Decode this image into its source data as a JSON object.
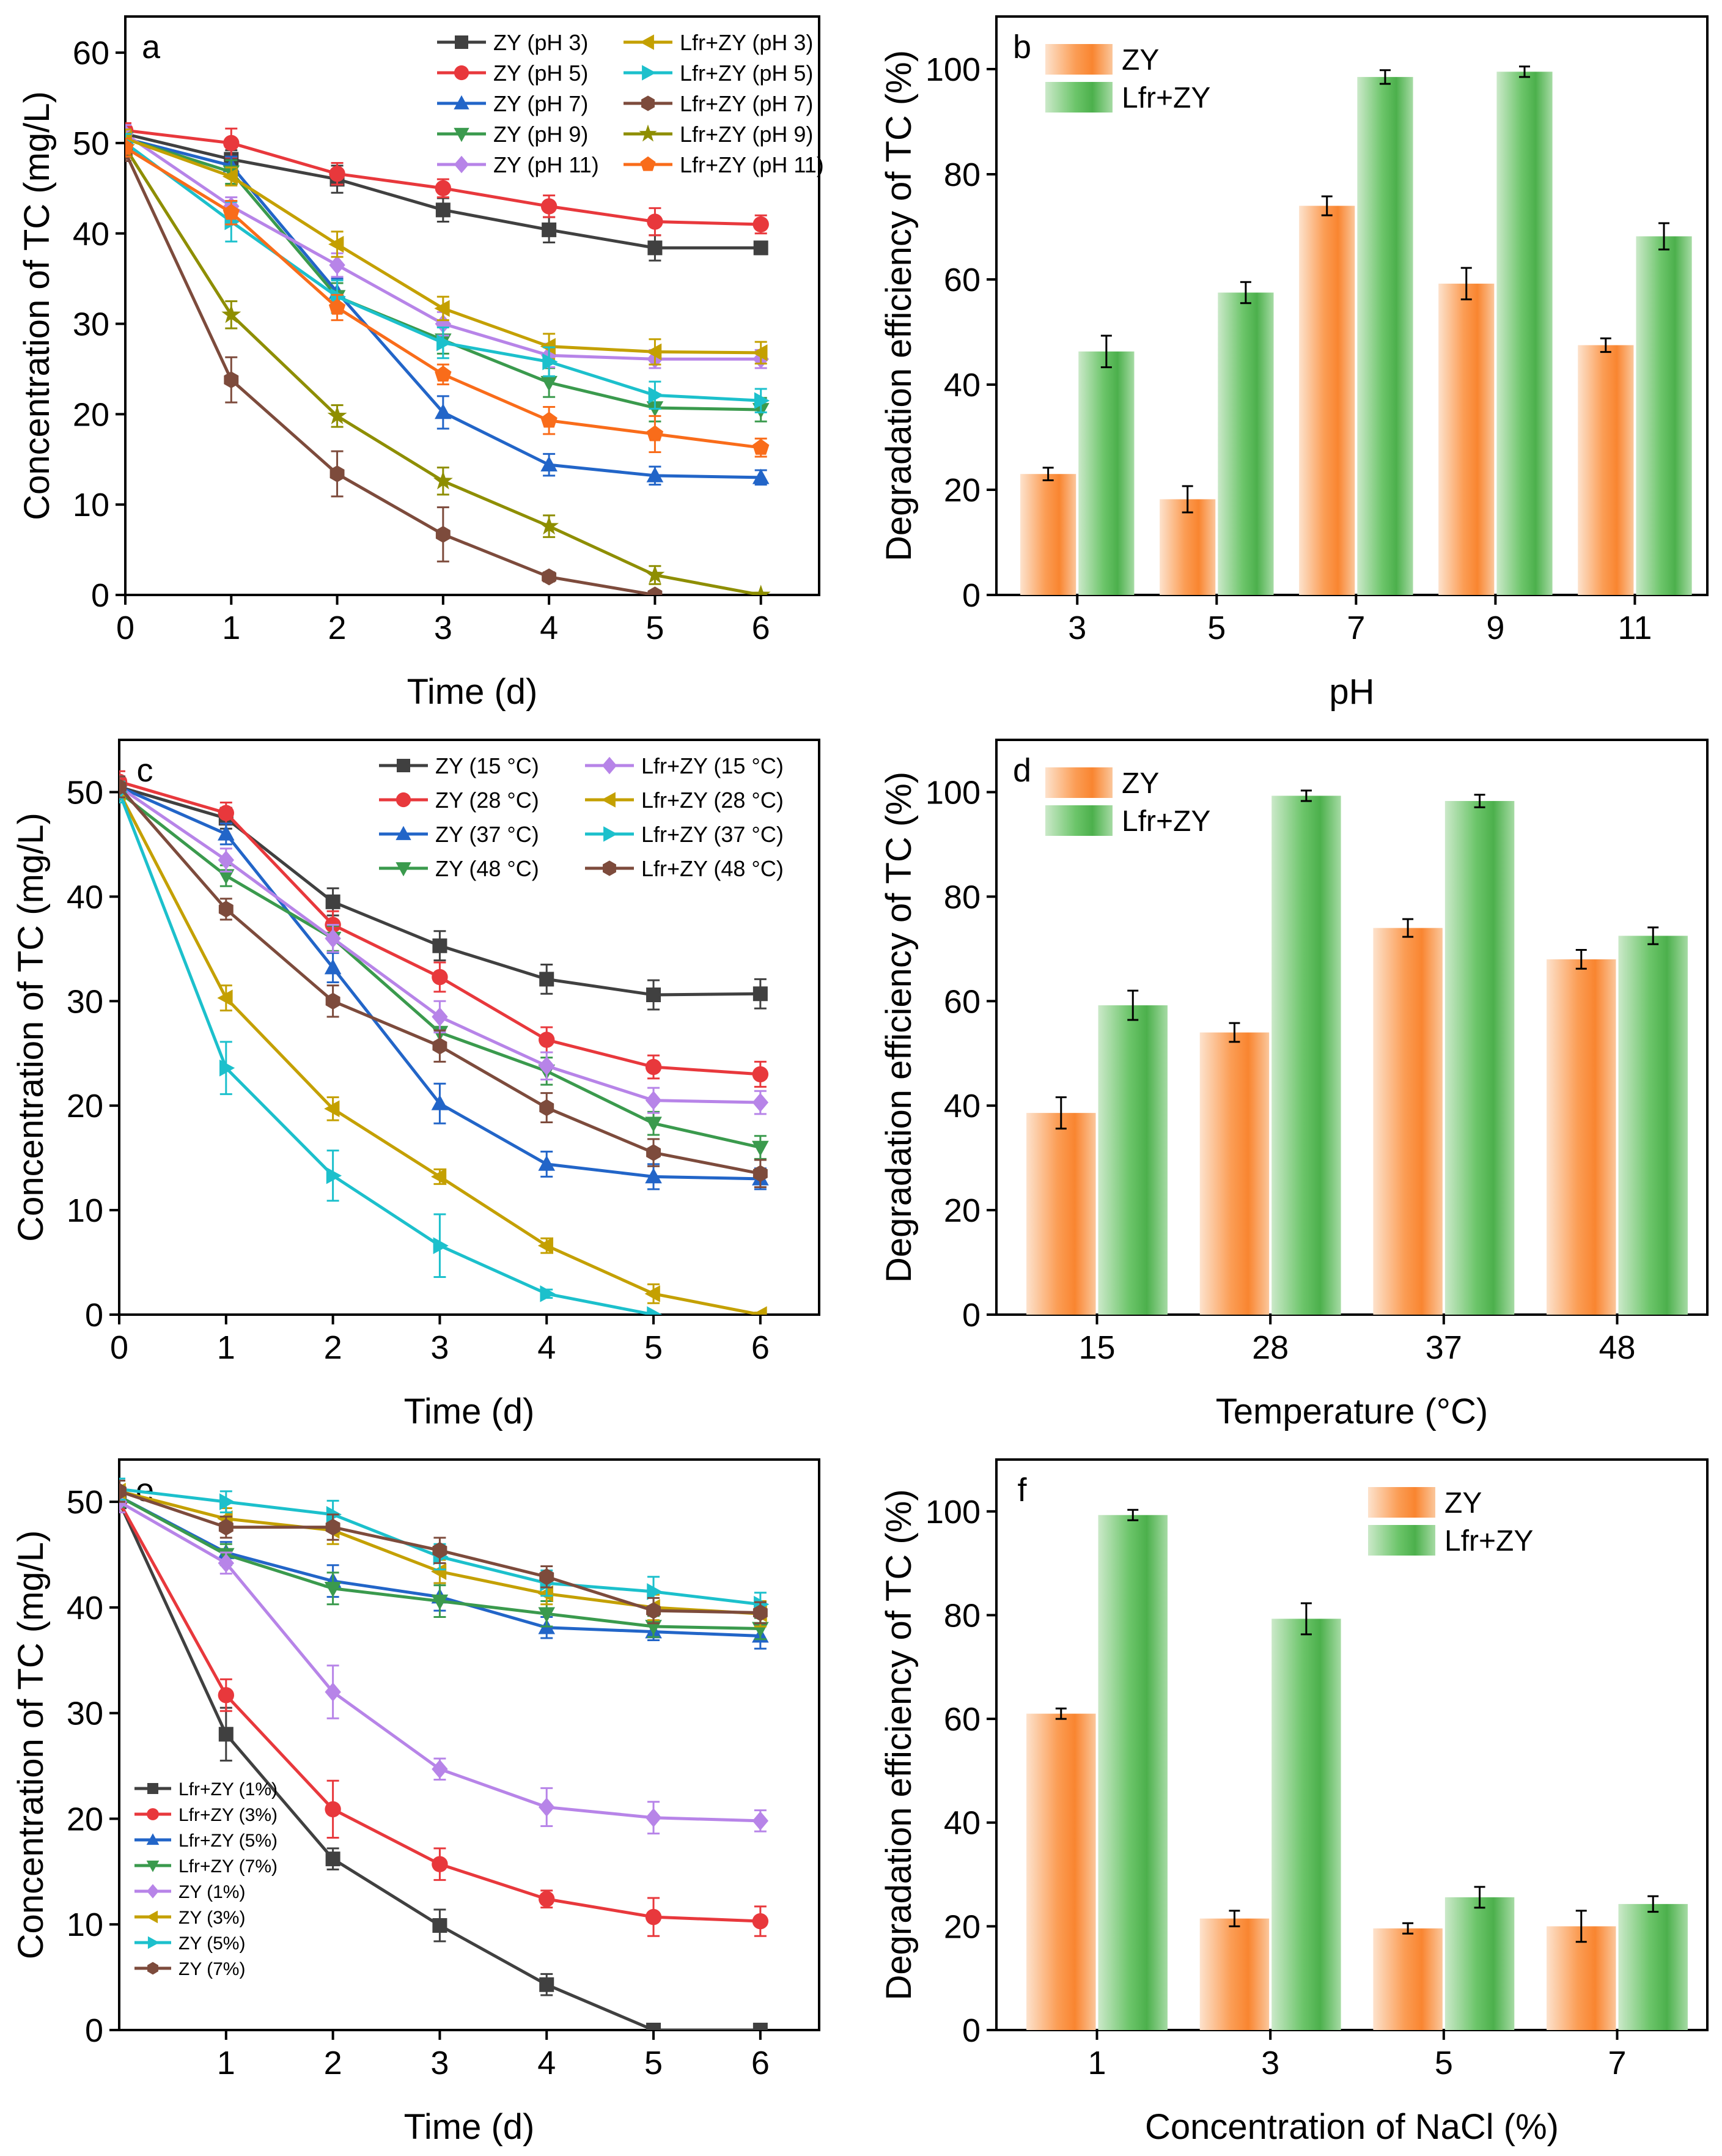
{
  "chart_data": [
    {
      "panel": "a",
      "type": "line",
      "x": [
        0,
        1,
        2,
        3,
        4,
        5,
        6
      ],
      "xlabel": "Time (d)",
      "ylabel": "Concentration of TC (mg/L)",
      "xlim": [
        0,
        6.55
      ],
      "ylim": [
        0,
        64
      ],
      "xticks": [
        0,
        1,
        2,
        3,
        4,
        5,
        6
      ],
      "yticks": [
        0,
        10,
        20,
        30,
        40,
        50,
        60
      ],
      "legend": "top-right",
      "legend_columns": 2,
      "series": [
        {
          "name": "ZY (pH 3)",
          "color": "#404040",
          "marker": "square",
          "values": [
            51.0,
            48.2,
            46.0,
            42.6,
            40.4,
            38.4,
            38.4
          ],
          "err": [
            1.0,
            1.0,
            1.5,
            1.3,
            1.4,
            1.4,
            0.7
          ]
        },
        {
          "name": "ZY (pH 5)",
          "color": "#e8383c",
          "marker": "circle",
          "values": [
            51.4,
            50.0,
            46.6,
            45.0,
            43.0,
            41.3,
            41.0
          ],
          "err": [
            0.8,
            1.6,
            1.2,
            1.0,
            1.2,
            1.5,
            1.0
          ]
        },
        {
          "name": "ZY (pH 7)",
          "color": "#2265c8",
          "marker": "triangle-up",
          "values": [
            50.5,
            47.5,
            33.5,
            20.2,
            14.4,
            13.2,
            13.0
          ],
          "err": [
            1.0,
            1.0,
            1.5,
            1.8,
            1.2,
            1.0,
            0.8
          ]
        },
        {
          "name": "ZY (pH 9)",
          "color": "#3a9a4d",
          "marker": "triangle-down",
          "values": [
            50.5,
            46.8,
            33.0,
            28.2,
            23.5,
            20.7,
            20.5
          ],
          "err": [
            1.0,
            1.3,
            1.5,
            1.5,
            1.6,
            1.5,
            1.3
          ]
        },
        {
          "name": "ZY (pH 11)",
          "color": "#b784e8",
          "marker": "diamond",
          "values": [
            51.0,
            43.0,
            36.5,
            30.0,
            26.5,
            26.1,
            26.1
          ],
          "err": [
            1.0,
            1.0,
            1.3,
            1.3,
            1.3,
            1.0,
            1.0
          ]
        },
        {
          "name": "Lfr+ZY (pH 3)",
          "color": "#c4a000",
          "marker": "triangle-left",
          "values": [
            50.5,
            46.3,
            38.8,
            31.7,
            27.5,
            26.9,
            26.8
          ],
          "err": [
            1.0,
            1.0,
            1.4,
            1.3,
            1.4,
            1.4,
            1.2
          ]
        },
        {
          "name": "Lfr+ZY (pH 5)",
          "color": "#1cc0cc",
          "marker": "triangle-right",
          "values": [
            50.0,
            41.3,
            33.0,
            27.9,
            25.8,
            22.1,
            21.5
          ],
          "err": [
            1.0,
            2.2,
            1.8,
            1.7,
            1.6,
            1.5,
            1.3
          ]
        },
        {
          "name": "Lfr+ZY (pH 7)",
          "color": "#7d4b3c",
          "marker": "hexagon",
          "values": [
            49.0,
            23.8,
            13.4,
            6.7,
            2.0,
            0.0,
            null
          ],
          "err": [
            1.0,
            2.5,
            2.5,
            3.0,
            0.5,
            0,
            0
          ]
        },
        {
          "name": "Lfr+ZY (pH 9)",
          "color": "#8e8e00",
          "marker": "star",
          "values": [
            49.5,
            31.0,
            19.8,
            12.6,
            7.6,
            2.2,
            0.0
          ],
          "err": [
            1.0,
            1.5,
            1.2,
            1.5,
            1.2,
            1.0,
            0.2
          ]
        },
        {
          "name": "Lfr+ZY (pH 11)",
          "color": "#f96c1a",
          "marker": "pentagon",
          "values": [
            49.5,
            42.3,
            31.8,
            24.4,
            19.3,
            17.8,
            16.3
          ],
          "err": [
            1.0,
            1.3,
            1.4,
            1.1,
            1.5,
            2.0,
            1.0
          ]
        }
      ]
    },
    {
      "panel": "b",
      "type": "bar",
      "categories": [
        "3",
        "5",
        "7",
        "9",
        "11"
      ],
      "xlabel": "pH",
      "ylabel": "Degradation efficiency of TC (%)",
      "ylim": [
        0,
        110
      ],
      "yticks": [
        0,
        20,
        40,
        60,
        80,
        100
      ],
      "legend": "top-left",
      "series": [
        {
          "name": "ZY",
          "color": "#f98a33",
          "values": [
            23.0,
            18.2,
            74.0,
            59.2,
            47.5
          ],
          "err": [
            1.2,
            2.5,
            1.8,
            3.0,
            1.3
          ]
        },
        {
          "name": "Lfr+ZY",
          "color": "#52b452",
          "values": [
            46.3,
            57.5,
            98.5,
            99.5,
            68.2
          ],
          "err": [
            3.0,
            2.0,
            1.3,
            1.0,
            2.5
          ]
        }
      ]
    },
    {
      "panel": "c",
      "type": "line",
      "x": [
        0,
        1,
        2,
        3,
        4,
        5,
        6
      ],
      "xlabel": "Time (d)",
      "ylabel": "Concentration of TC (mg/L)",
      "xlim": [
        0,
        6.55
      ],
      "ylim": [
        0,
        55
      ],
      "xticks": [
        0,
        1,
        2,
        3,
        4,
        5,
        6
      ],
      "yticks": [
        0,
        10,
        20,
        30,
        40,
        50
      ],
      "legend": "top-right",
      "legend_columns": 2,
      "series": [
        {
          "name": "ZY (15 °C)",
          "color": "#404040",
          "marker": "square",
          "values": [
            50.5,
            47.5,
            39.5,
            35.3,
            32.1,
            30.6,
            30.7
          ],
          "err": [
            1.0,
            1.0,
            1.3,
            1.4,
            1.4,
            1.4,
            1.4
          ]
        },
        {
          "name": "ZY (28 °C)",
          "color": "#e8383c",
          "marker": "circle",
          "values": [
            51.0,
            48.0,
            37.3,
            32.3,
            26.3,
            23.7,
            23.0
          ],
          "err": [
            1.0,
            1.0,
            1.3,
            1.4,
            1.2,
            1.1,
            1.2
          ]
        },
        {
          "name": "ZY (37 °C)",
          "color": "#2265c8",
          "marker": "triangle-up",
          "values": [
            50.5,
            46.0,
            33.2,
            20.2,
            14.4,
            13.2,
            13.0
          ],
          "err": [
            1.0,
            1.0,
            1.4,
            1.9,
            1.2,
            1.2,
            1.0
          ]
        },
        {
          "name": "ZY (48 °C)",
          "color": "#3a9a4d",
          "marker": "triangle-down",
          "values": [
            50.0,
            42.0,
            36.0,
            27.0,
            23.3,
            18.3,
            16.0
          ],
          "err": [
            1.0,
            1.0,
            1.2,
            1.4,
            1.3,
            1.1,
            1.1
          ]
        },
        {
          "name": "Lfr+ZY (15 °C)",
          "color": "#b784e8",
          "marker": "diamond",
          "values": [
            50.5,
            43.5,
            36.0,
            28.5,
            23.8,
            20.5,
            20.3
          ],
          "err": [
            1.0,
            1.1,
            1.3,
            1.5,
            1.3,
            1.2,
            1.1
          ]
        },
        {
          "name": "Lfr+ZY (28 °C)",
          "color": "#c4a000",
          "marker": "triangle-left",
          "values": [
            50.0,
            30.3,
            19.7,
            13.2,
            6.6,
            2.0,
            0.0
          ],
          "err": [
            1.0,
            1.2,
            1.1,
            0.7,
            0.7,
            0.9,
            0.2
          ]
        },
        {
          "name": "Lfr+ZY (37 °C)",
          "color": "#1cc0cc",
          "marker": "triangle-right",
          "values": [
            50.0,
            23.6,
            13.3,
            6.6,
            2.0,
            0.0,
            null
          ],
          "err": [
            1.0,
            2.5,
            2.4,
            3.0,
            0.4,
            0,
            0
          ]
        },
        {
          "name": "Lfr+ZY (48 °C)",
          "color": "#7d4b3c",
          "marker": "hexagon",
          "values": [
            50.5,
            38.8,
            30.0,
            25.7,
            19.8,
            15.5,
            13.5
          ],
          "err": [
            1.0,
            1.0,
            1.5,
            1.5,
            1.4,
            1.3,
            1.3
          ]
        }
      ]
    },
    {
      "panel": "d",
      "type": "bar",
      "categories": [
        "15",
        "28",
        "37",
        "48"
      ],
      "xlabel": "Temperature (°C)",
      "ylabel": "Degradation efficiency of TC (%)",
      "ylim": [
        0,
        110
      ],
      "yticks": [
        0,
        20,
        40,
        60,
        80,
        100
      ],
      "legend": "top-left",
      "series": [
        {
          "name": "ZY",
          "color": "#f98a33",
          "values": [
            38.6,
            54.0,
            74.0,
            68.0
          ],
          "err": [
            3.0,
            1.8,
            1.7,
            1.8
          ]
        },
        {
          "name": "Lfr+ZY",
          "color": "#52b452",
          "values": [
            59.2,
            99.3,
            98.3,
            72.5
          ],
          "err": [
            2.8,
            1.0,
            1.2,
            1.6
          ]
        }
      ]
    },
    {
      "panel": "e",
      "type": "line",
      "x": [
        0,
        1,
        2,
        3,
        4,
        5,
        6
      ],
      "xlabel": "Time (d)",
      "ylabel": "Concentration of TC (mg/L)",
      "xlim": [
        0,
        6.55
      ],
      "ylim": [
        0,
        54
      ],
      "xticks": [
        1,
        2,
        3,
        4,
        5,
        6
      ],
      "yticks": [
        0,
        10,
        20,
        30,
        40,
        50
      ],
      "legend": "bottom-left",
      "legend_columns": 1,
      "series": [
        {
          "name": "Lfr+ZY (1%)",
          "color": "#404040",
          "marker": "square",
          "values": [
            50.0,
            28.0,
            16.2,
            9.9,
            4.3,
            0.0,
            0.0
          ],
          "err": [
            1.0,
            2.5,
            1.0,
            1.5,
            1.0,
            0.3,
            0.3
          ]
        },
        {
          "name": "Lfr+ZY (3%)",
          "color": "#e8383c",
          "marker": "circle",
          "values": [
            50.0,
            31.7,
            20.9,
            15.7,
            12.4,
            10.7,
            10.3
          ],
          "err": [
            1.0,
            1.5,
            2.7,
            1.5,
            0.8,
            1.8,
            1.4
          ]
        },
        {
          "name": "Lfr+ZY (5%)",
          "color": "#2265c8",
          "marker": "triangle-up",
          "values": [
            50.5,
            45.2,
            42.5,
            41.0,
            38.1,
            37.7,
            37.3
          ],
          "err": [
            1.0,
            1.0,
            1.5,
            1.3,
            1.0,
            0.8,
            1.2
          ]
        },
        {
          "name": "Lfr+ZY (7%)",
          "color": "#3a9a4d",
          "marker": "triangle-down",
          "values": [
            50.5,
            45.0,
            41.8,
            40.6,
            39.4,
            38.2,
            38.0
          ],
          "err": [
            1.0,
            1.0,
            1.5,
            1.5,
            1.2,
            1.0,
            1.0
          ]
        },
        {
          "name": "ZY (1%)",
          "color": "#b784e8",
          "marker": "diamond",
          "values": [
            50.0,
            44.2,
            32.0,
            24.7,
            21.1,
            20.1,
            19.8
          ],
          "err": [
            1.0,
            1.0,
            2.5,
            1.0,
            1.8,
            1.5,
            1.0
          ]
        },
        {
          "name": "ZY (3%)",
          "color": "#c4a000",
          "marker": "triangle-left",
          "values": [
            51.0,
            48.4,
            47.3,
            43.4,
            41.3,
            40.0,
            39.4
          ],
          "err": [
            1.0,
            1.0,
            1.3,
            1.1,
            1.0,
            1.2,
            1.2
          ]
        },
        {
          "name": "ZY (5%)",
          "color": "#1cc0cc",
          "marker": "triangle-right",
          "values": [
            51.2,
            50.0,
            48.8,
            44.8,
            42.3,
            41.5,
            40.3
          ],
          "err": [
            1.0,
            1.0,
            1.3,
            1.2,
            1.2,
            1.4,
            1.1
          ]
        },
        {
          "name": "ZY (7%)",
          "color": "#7d4b3c",
          "marker": "hexagon",
          "values": [
            51.0,
            47.6,
            47.6,
            45.4,
            42.9,
            39.7,
            39.5
          ],
          "err": [
            1.0,
            1.0,
            1.2,
            1.2,
            1.0,
            1.2,
            1.0
          ]
        }
      ]
    },
    {
      "panel": "f",
      "type": "bar",
      "categories": [
        "1",
        "3",
        "5",
        "7"
      ],
      "xlabel": "Concentration of NaCl (%)",
      "ylabel": "Degradation efficiency of TC (%)",
      "ylim": [
        0,
        110
      ],
      "yticks": [
        0,
        20,
        40,
        60,
        80,
        100
      ],
      "legend": "top-right",
      "series": [
        {
          "name": "ZY",
          "color": "#f98a33",
          "values": [
            61.0,
            21.5,
            19.6,
            20.0
          ],
          "err": [
            1.0,
            1.5,
            1.0,
            3.0
          ]
        },
        {
          "name": "Lfr+ZY",
          "color": "#52b452",
          "values": [
            99.3,
            79.3,
            25.6,
            24.3
          ],
          "err": [
            1.0,
            3.0,
            2.0,
            1.5
          ]
        }
      ]
    }
  ]
}
